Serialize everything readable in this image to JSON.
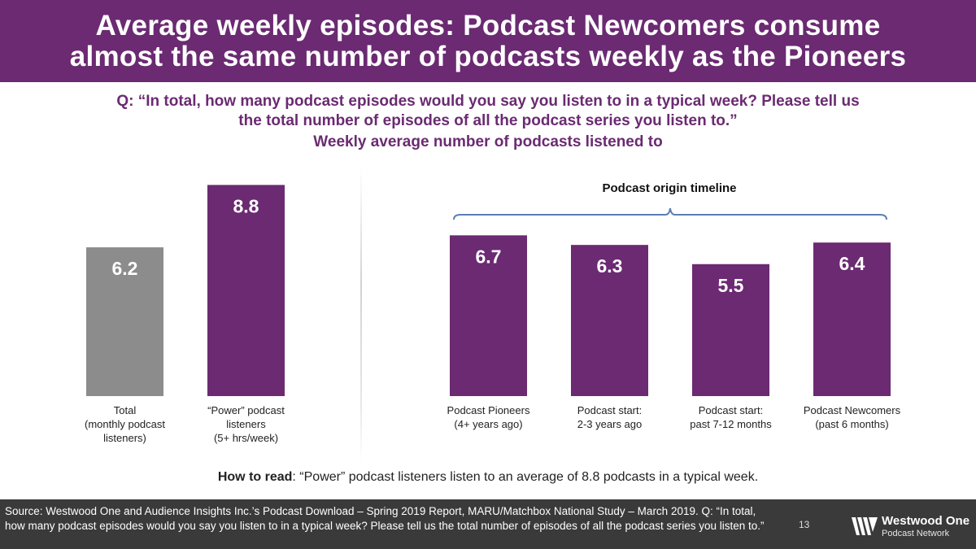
{
  "title": {
    "line1": "Average weekly episodes: Podcast Newcomers consume",
    "line2": "almost the same number of podcasts weekly as the Pioneers"
  },
  "question": {
    "line1": "Q: “In total, how many podcast episodes would you say you listen to in a typical week?  Please tell us",
    "line2": "the total number of episodes of all the podcast series you listen to.”",
    "line3": "Weekly average number of podcasts listened to"
  },
  "colors": {
    "brand": "#6b2a72",
    "gray": "#8c8c8c",
    "footer": "#3a3a3a",
    "bracket": "#5b7fb5"
  },
  "chart_data": [
    {
      "type": "bar",
      "title": "",
      "categories": [
        [
          "Total",
          "(monthly podcast",
          "listeners)"
        ],
        [
          "“Power” podcast",
          "listeners",
          "(5+ hrs/week)"
        ]
      ],
      "values": [
        6.2,
        8.8
      ],
      "bar_colors": [
        "#8c8c8c",
        "#6b2a72"
      ],
      "ylim": [
        0,
        10
      ],
      "xlabel": "",
      "ylabel": ""
    },
    {
      "type": "bar",
      "title": "Podcast origin timeline",
      "categories": [
        [
          "Podcast Pioneers",
          "(4+ years ago)"
        ],
        [
          "Podcast start:",
          "2-3 years ago"
        ],
        [
          "Podcast start:",
          "past 7-12 months"
        ],
        [
          "Podcast Newcomers",
          "(past 6 months)"
        ]
      ],
      "values": [
        6.7,
        6.3,
        5.5,
        6.4
      ],
      "bar_colors": [
        "#6b2a72",
        "#6b2a72",
        "#6b2a72",
        "#6b2a72"
      ],
      "ylim": [
        0,
        10
      ],
      "xlabel": "",
      "ylabel": ""
    }
  ],
  "how_to_read": {
    "label": "How to read",
    "text": ": “Power” podcast listeners listen to an average of 8.8 podcasts in a typical week."
  },
  "footer": {
    "source": "Source: Westwood One and Audience Insights Inc.’s Podcast Download – Spring 2019 Report, MARU/Matchbox National Study – March 2019. Q: “In total, how many podcast episodes would you say you listen to in a typical week?  Please tell us the total number of episodes of all the podcast series you listen to.”",
    "page_number": "13",
    "logo_line1": "Westwood One",
    "logo_line2": "Podcast Network",
    "logo_icon": "westwood-one-logo-icon"
  }
}
